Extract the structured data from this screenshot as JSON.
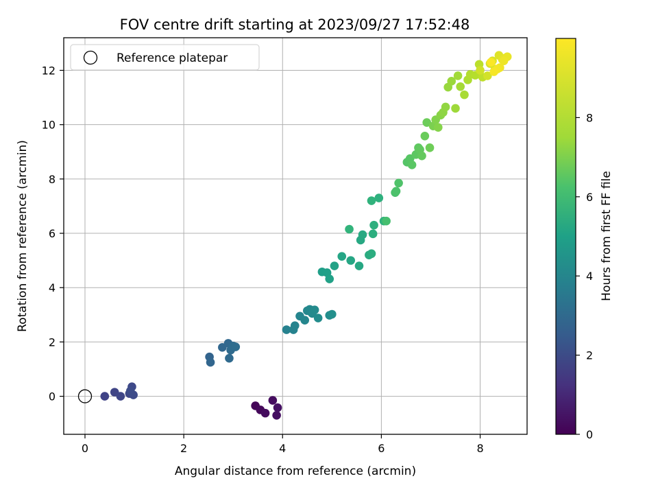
{
  "chart_data": {
    "type": "scatter",
    "title": "FOV centre drift starting at 2023/09/27 17:52:48",
    "xlabel": "Angular distance from reference (arcmin)",
    "ylabel": "Rotation from reference (arcmin)",
    "xlim": [
      -0.43,
      8.95
    ],
    "ylim": [
      -1.4,
      13.2
    ],
    "xticks": [
      0,
      2,
      4,
      6,
      8
    ],
    "yticks": [
      0,
      2,
      4,
      6,
      8,
      10,
      12
    ],
    "grid": true,
    "legend": {
      "placement": "top-left",
      "entries": [
        "Reference platepar"
      ]
    },
    "reference_point": {
      "x": 0,
      "y": 0,
      "label": "Reference platepar",
      "marker": "hollow-circle"
    },
    "colorbar": {
      "label": "Hours from first FF file",
      "colormap": "viridis",
      "range": [
        0,
        10
      ],
      "ticks": [
        0,
        2,
        4,
        6,
        8
      ]
    },
    "series": [
      {
        "x": [
          3.45,
          3.55,
          3.65,
          3.8,
          3.88,
          3.9,
          0.4,
          0.6,
          0.72,
          0.9,
          0.95,
          0.98,
          0.92,
          2.52,
          2.54,
          2.78,
          2.9,
          2.92,
          2.95,
          3.0,
          3.05,
          4.08,
          4.22,
          4.25,
          4.35,
          4.45,
          4.5,
          4.55,
          4.6,
          4.65,
          4.72,
          4.95,
          5.0,
          4.8,
          4.9,
          4.95,
          5.05,
          5.2,
          5.38,
          5.55,
          5.58,
          5.62,
          5.75,
          5.8,
          5.83,
          5.85,
          5.95,
          6.05,
          5.8,
          5.35,
          6.1,
          6.28,
          6.3,
          6.35,
          6.52,
          6.58,
          6.62,
          6.7,
          6.75,
          6.78,
          6.82,
          6.88,
          6.92,
          6.98,
          7.05,
          7.1,
          7.15,
          7.2,
          7.25,
          7.3,
          7.35,
          7.42,
          7.5,
          7.55,
          7.6,
          7.68,
          7.75,
          7.8,
          7.9,
          7.98,
          8.05,
          8.0,
          8.15,
          8.2,
          8.25,
          8.3,
          8.38,
          8.45,
          8.5,
          8.55,
          8.48,
          8.4,
          8.35,
          8.28,
          8.22
        ],
        "y": [
          -0.35,
          -0.5,
          -0.62,
          -0.15,
          -0.7,
          -0.42,
          0.0,
          0.15,
          0.0,
          0.1,
          0.35,
          0.05,
          0.2,
          1.45,
          1.25,
          1.8,
          1.95,
          1.4,
          1.7,
          1.85,
          1.82,
          2.45,
          2.45,
          2.6,
          2.95,
          2.8,
          3.15,
          3.2,
          3.05,
          3.18,
          2.88,
          2.98,
          3.02,
          4.58,
          4.55,
          4.32,
          4.8,
          5.15,
          5.0,
          4.8,
          5.75,
          5.95,
          5.2,
          5.25,
          5.98,
          6.3,
          7.3,
          6.45,
          7.2,
          6.15,
          6.45,
          7.5,
          7.55,
          7.85,
          8.62,
          8.75,
          8.52,
          8.9,
          9.15,
          9.08,
          8.85,
          9.58,
          10.08,
          9.15,
          9.95,
          10.18,
          9.9,
          10.35,
          10.45,
          10.65,
          11.38,
          11.6,
          10.6,
          11.8,
          11.4,
          11.1,
          11.65,
          11.85,
          11.82,
          12.22,
          11.75,
          12.0,
          11.8,
          12.25,
          12.35,
          12.05,
          12.55,
          12.4,
          12.45,
          12.5,
          12.35,
          12.1,
          12.05,
          11.95,
          12.3
        ],
        "hours": [
          0.1,
          0.2,
          0.3,
          0.35,
          0.4,
          0.45,
          2.0,
          2.05,
          2.1,
          2.15,
          2.2,
          2.25,
          2.3,
          3.2,
          3.25,
          3.3,
          3.35,
          3.4,
          3.45,
          3.5,
          3.55,
          4.4,
          4.45,
          4.5,
          4.55,
          4.6,
          4.65,
          4.7,
          4.75,
          4.8,
          4.85,
          4.9,
          4.95,
          5.6,
          5.65,
          5.7,
          5.75,
          5.85,
          5.9,
          5.95,
          6.0,
          6.05,
          6.15,
          6.2,
          6.25,
          6.3,
          6.35,
          6.4,
          6.45,
          6.5,
          7.0,
          7.1,
          7.15,
          7.2,
          7.3,
          7.35,
          7.4,
          7.45,
          7.5,
          7.55,
          7.6,
          7.7,
          7.75,
          7.8,
          8.0,
          8.1,
          8.15,
          8.2,
          8.3,
          8.35,
          8.45,
          8.5,
          8.55,
          8.6,
          8.65,
          8.7,
          8.8,
          8.85,
          8.9,
          9.0,
          9.05,
          9.3,
          9.35,
          9.4,
          9.45,
          9.5,
          9.55,
          9.6,
          9.65,
          9.7,
          9.75,
          9.8,
          9.85,
          9.9,
          9.95
        ]
      }
    ]
  }
}
